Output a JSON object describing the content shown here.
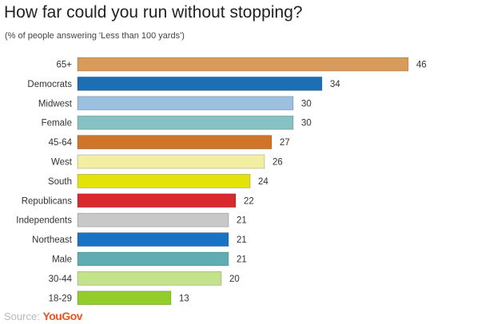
{
  "chart_data": {
    "type": "bar",
    "orientation": "horizontal",
    "title": "How far could you run without stopping?",
    "subtitle": "(% of people answering 'Less than 100 yards')",
    "categories": [
      "65+",
      "Democrats",
      "Midwest",
      "Female",
      "45-64",
      "West",
      "South",
      "Republicans",
      "Independents",
      "Northeast",
      "Male",
      "30-44",
      "18-29"
    ],
    "values": [
      46,
      34,
      30,
      30,
      27,
      26,
      24,
      22,
      21,
      21,
      21,
      20,
      13
    ],
    "colors": [
      "#d89b5c",
      "#1c6fb5",
      "#9bc0e0",
      "#86c2c4",
      "#d0742a",
      "#f2f0a0",
      "#e3e30a",
      "#d9282e",
      "#c8c8c8",
      "#1a72c4",
      "#5fadb3",
      "#c3e38a",
      "#92cd2b"
    ],
    "grid": false,
    "legend": "none",
    "xlim": [
      0,
      46
    ]
  },
  "source": {
    "prefix": "Source:",
    "brand": "YouGov"
  }
}
